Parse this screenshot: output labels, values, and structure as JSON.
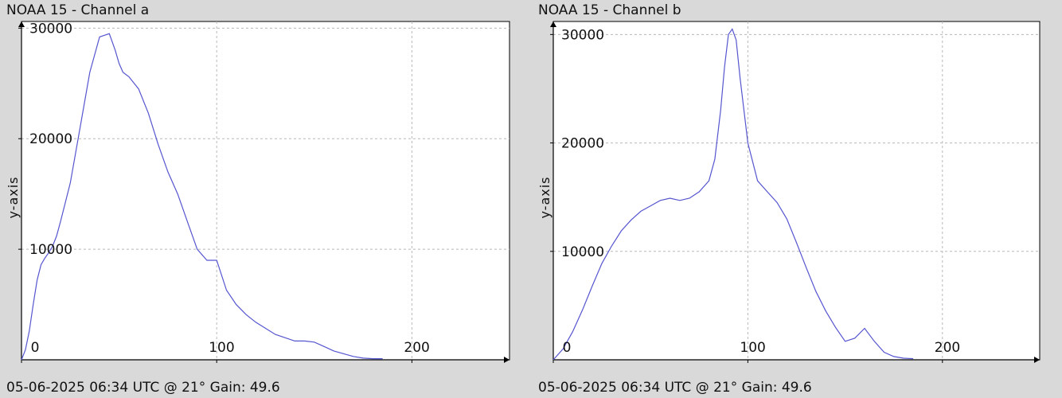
{
  "chart_data": [
    {
      "type": "line",
      "title": "NOAA 15 - Channel a",
      "footer": "05-06-2025 06:34 UTC @ 21° Gain: 49.6",
      "xlabel": "",
      "ylabel": "y-axis",
      "xlim": [
        0,
        250
      ],
      "ylim": [
        0,
        30600
      ],
      "x_ticks": [
        0,
        100,
        200
      ],
      "y_ticks": [
        10000,
        20000,
        30000
      ],
      "grid": true,
      "series": [
        {
          "color": "#5555d0",
          "x": [
            0,
            2,
            4,
            6,
            8,
            10,
            12,
            14,
            16,
            18,
            20,
            25,
            30,
            35,
            40,
            45,
            48,
            50,
            52,
            55,
            60,
            65,
            70,
            75,
            80,
            85,
            90,
            95,
            100,
            105,
            110,
            115,
            120,
            130,
            140,
            145,
            150,
            155,
            160,
            170,
            175,
            180,
            185
          ],
          "y": [
            0,
            900,
            2600,
            5000,
            7200,
            8600,
            9200,
            9700,
            10300,
            11200,
            12500,
            16000,
            21000,
            26000,
            29200,
            29500,
            28000,
            26800,
            26000,
            25600,
            24500,
            22300,
            19500,
            17000,
            15000,
            12500,
            10000,
            9000,
            9000,
            6300,
            5000,
            4100,
            3400,
            2300,
            1700,
            1700,
            1600,
            1200,
            800,
            300,
            150,
            100,
            100
          ]
        }
      ]
    },
    {
      "type": "line",
      "title": "NOAA 15 - Channel b",
      "footer": "05-06-2025 06:34 UTC @ 21° Gain: 49.6",
      "xlabel": "",
      "ylabel": "y-axis",
      "xlim": [
        0,
        250
      ],
      "ylim": [
        0,
        31200
      ],
      "x_ticks": [
        0,
        100,
        200
      ],
      "y_ticks": [
        10000,
        20000,
        30000
      ],
      "grid": true,
      "series": [
        {
          "color": "#5555d0",
          "x": [
            0,
            5,
            10,
            15,
            20,
            25,
            30,
            35,
            40,
            45,
            50,
            55,
            60,
            65,
            70,
            75,
            80,
            83,
            86,
            88,
            90,
            92,
            94,
            96,
            98,
            100,
            105,
            110,
            115,
            120,
            125,
            130,
            135,
            140,
            145,
            150,
            155,
            160,
            165,
            170,
            175,
            180,
            185
          ],
          "y": [
            0,
            1000,
            2600,
            4600,
            6800,
            8900,
            10500,
            11900,
            12900,
            13700,
            14200,
            14700,
            14900,
            14700,
            14900,
            15500,
            16500,
            18500,
            23000,
            27000,
            30000,
            30500,
            29500,
            26000,
            23000,
            20000,
            16500,
            15500,
            14500,
            13000,
            10800,
            8500,
            6300,
            4500,
            3000,
            1700,
            2000,
            2900,
            1700,
            700,
            300,
            150,
            100
          ]
        }
      ]
    }
  ]
}
